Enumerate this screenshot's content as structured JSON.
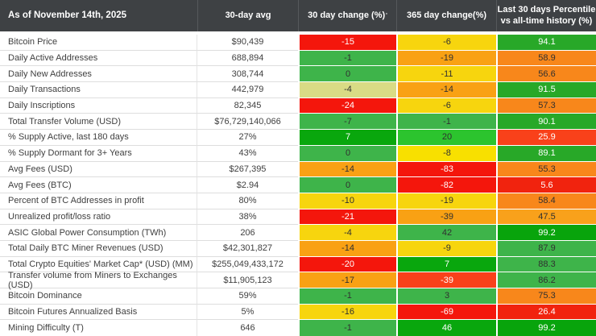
{
  "header": {
    "col1": "As of November 14th, 2025",
    "col2": "30-day avg",
    "col3": "30 day change (%)",
    "col3_sup": "'",
    "col4": "365 day change(%)",
    "col5_line1": "Last 30 days Percentile",
    "col5_line2": "vs all-time history (%)"
  },
  "colors": {
    "header_bg": "#3e4144",
    "header_text": "#ffffff",
    "row_text": "#3f3f3f",
    "red": "#f4160c",
    "orange_change": "#f9a114",
    "orange_percentile": "#f8871b",
    "gold": "#f7d50e",
    "khaki": "#d9db85",
    "green_medium": "#3eb44a",
    "green_dark": "#09a70d",
    "green_percentile": "#28a828"
  },
  "chart_data": {
    "type": "table",
    "title": "As of November 14th, 2025",
    "columns": [
      "Metric",
      "30-day avg",
      "30 day change (%)",
      "365 day change(%)",
      "Last 30 days Percentile vs all-time history (%)"
    ],
    "heatmap": true,
    "rows": [
      {
        "metric": "Bitcoin Price",
        "avg": "$90,439",
        "c30": {
          "v": "-15",
          "bg": "#f4160c",
          "fg": "#ffffff"
        },
        "c365": {
          "v": "-6",
          "bg": "#f7d50e",
          "fg": "#303030"
        },
        "pct": {
          "v": "94.1",
          "bg": "#28a828",
          "fg": "#ffffff"
        }
      },
      {
        "metric": "Daily Active Addresses",
        "avg": "688,894",
        "c30": {
          "v": "-1",
          "bg": "#3eb44a",
          "fg": "#303030"
        },
        "c365": {
          "v": "-19",
          "bg": "#f9a114",
          "fg": "#303030"
        },
        "pct": {
          "v": "58.9",
          "bg": "#f8871b",
          "fg": "#303030"
        }
      },
      {
        "metric": "Daily New Addresses",
        "avg": "308,744",
        "c30": {
          "v": "0",
          "bg": "#3eb44a",
          "fg": "#303030"
        },
        "c365": {
          "v": "-11",
          "bg": "#f7d50e",
          "fg": "#303030"
        },
        "pct": {
          "v": "56.6",
          "bg": "#f8871b",
          "fg": "#303030"
        }
      },
      {
        "metric": "Daily Transactions",
        "avg": "442,979",
        "c30": {
          "v": "-4",
          "bg": "#d9db85",
          "fg": "#303030"
        },
        "c365": {
          "v": "-14",
          "bg": "#f9a114",
          "fg": "#303030"
        },
        "pct": {
          "v": "91.5",
          "bg": "#28a828",
          "fg": "#ffffff"
        }
      },
      {
        "metric": "Daily Inscriptions",
        "avg": "82,345",
        "c30": {
          "v": "-24",
          "bg": "#f4160c",
          "fg": "#ffffff"
        },
        "c365": {
          "v": "-6",
          "bg": "#f7d50e",
          "fg": "#303030"
        },
        "pct": {
          "v": "57.3",
          "bg": "#f8871b",
          "fg": "#303030"
        }
      },
      {
        "metric": "Total Transfer Volume (USD)",
        "avg": "$76,729,140,066",
        "c30": {
          "v": "-7",
          "bg": "#3eb44a",
          "fg": "#303030"
        },
        "c365": {
          "v": "-1",
          "bg": "#3eb44a",
          "fg": "#303030"
        },
        "pct": {
          "v": "90.1",
          "bg": "#28a828",
          "fg": "#ffffff"
        }
      },
      {
        "metric": "% Supply Active, last 180 days",
        "avg": "27%",
        "c30": {
          "v": "7",
          "bg": "#09a70d",
          "fg": "#ffffff"
        },
        "c365": {
          "v": "20",
          "bg": "#2cc42e",
          "fg": "#303030"
        },
        "pct": {
          "v": "25.9",
          "bg": "#f9411a",
          "fg": "#ffffff"
        }
      },
      {
        "metric": "% Supply Dormant for 3+ Years",
        "avg": "43%",
        "c30": {
          "v": "0",
          "bg": "#3eb44a",
          "fg": "#303030"
        },
        "c365": {
          "v": "-8",
          "bg": "#f8e000",
          "fg": "#303030"
        },
        "pct": {
          "v": "89.1",
          "bg": "#28a828",
          "fg": "#ffffff"
        }
      },
      {
        "metric": "Avg Fees (USD)",
        "avg": "$267,395",
        "c30": {
          "v": "-14",
          "bg": "#f9a114",
          "fg": "#303030"
        },
        "c365": {
          "v": "-83",
          "bg": "#f4160c",
          "fg": "#ffffff"
        },
        "pct": {
          "v": "55.3",
          "bg": "#f8871b",
          "fg": "#303030"
        }
      },
      {
        "metric": "Avg Fees (BTC)",
        "avg": "$2.94",
        "c30": {
          "v": "0",
          "bg": "#3eb44a",
          "fg": "#303030"
        },
        "c365": {
          "v": "-82",
          "bg": "#f4160c",
          "fg": "#ffffff"
        },
        "pct": {
          "v": "5.6",
          "bg": "#f1230e",
          "fg": "#ffffff"
        }
      },
      {
        "metric": "Percent of BTC Addresses in profit",
        "avg": "80%",
        "c30": {
          "v": "-10",
          "bg": "#f7d50e",
          "fg": "#303030"
        },
        "c365": {
          "v": "-19",
          "bg": "#f7d50e",
          "fg": "#303030"
        },
        "pct": {
          "v": "58.4",
          "bg": "#f8871b",
          "fg": "#303030"
        }
      },
      {
        "metric": "Unrealized profit/loss ratio",
        "avg": "38%",
        "c30": {
          "v": "-21",
          "bg": "#f4160c",
          "fg": "#ffffff"
        },
        "c365": {
          "v": "-39",
          "bg": "#f9a114",
          "fg": "#303030"
        },
        "pct": {
          "v": "47.5",
          "bg": "#f9a11b",
          "fg": "#303030"
        }
      },
      {
        "metric": "ASIC Global Power Consumption (TWh)",
        "avg": "206",
        "c30": {
          "v": "-4",
          "bg": "#f7d50e",
          "fg": "#303030"
        },
        "c365": {
          "v": "42",
          "bg": "#3eb44a",
          "fg": "#303030"
        },
        "pct": {
          "v": "99.2",
          "bg": "#08a40c",
          "fg": "#ffffff"
        }
      },
      {
        "metric": "Total Daily BTC Miner Revenues (USD)",
        "avg": "$42,301,827",
        "c30": {
          "v": "-14",
          "bg": "#f9a114",
          "fg": "#303030"
        },
        "c365": {
          "v": "-9",
          "bg": "#f7d50e",
          "fg": "#303030"
        },
        "pct": {
          "v": "87.9",
          "bg": "#3eb44a",
          "fg": "#303030"
        }
      },
      {
        "metric": "Total Crypto Equities' Market Cap* (USD) (MM)",
        "avg": "$255,049,433,172",
        "c30": {
          "v": "-20",
          "bg": "#f4160c",
          "fg": "#ffffff"
        },
        "c365": {
          "v": "7",
          "bg": "#09a70d",
          "fg": "#ffffff"
        },
        "pct": {
          "v": "88.3",
          "bg": "#3eb44a",
          "fg": "#303030"
        }
      },
      {
        "metric": "Transfer volume from Miners to Exchanges (USD)",
        "avg": "$11,905,123",
        "c30": {
          "v": "-17",
          "bg": "#f9a114",
          "fg": "#303030"
        },
        "c365": {
          "v": "-39",
          "bg": "#f9411a",
          "fg": "#ffffff"
        },
        "pct": {
          "v": "86.2",
          "bg": "#3eb44a",
          "fg": "#303030"
        }
      },
      {
        "metric": "Bitcoin Dominance",
        "avg": "59%",
        "c30": {
          "v": "-1",
          "bg": "#3eb44a",
          "fg": "#303030"
        },
        "c365": {
          "v": "3",
          "bg": "#3eb44a",
          "fg": "#303030"
        },
        "pct": {
          "v": "75.3",
          "bg": "#f8871b",
          "fg": "#303030"
        }
      },
      {
        "metric": "Bitcoin Futures Annualized Basis",
        "avg": "5%",
        "c30": {
          "v": "-16",
          "bg": "#f7d50e",
          "fg": "#303030"
        },
        "c365": {
          "v": "-69",
          "bg": "#f4160c",
          "fg": "#ffffff"
        },
        "pct": {
          "v": "26.4",
          "bg": "#f1230e",
          "fg": "#ffffff"
        }
      },
      {
        "metric": "Mining Difficulty (T)",
        "avg": "646",
        "c30": {
          "v": "-1",
          "bg": "#3eb44a",
          "fg": "#303030"
        },
        "c365": {
          "v": "46",
          "bg": "#09a70d",
          "fg": "#ffffff"
        },
        "pct": {
          "v": "99.2",
          "bg": "#08a40c",
          "fg": "#ffffff"
        }
      }
    ]
  }
}
